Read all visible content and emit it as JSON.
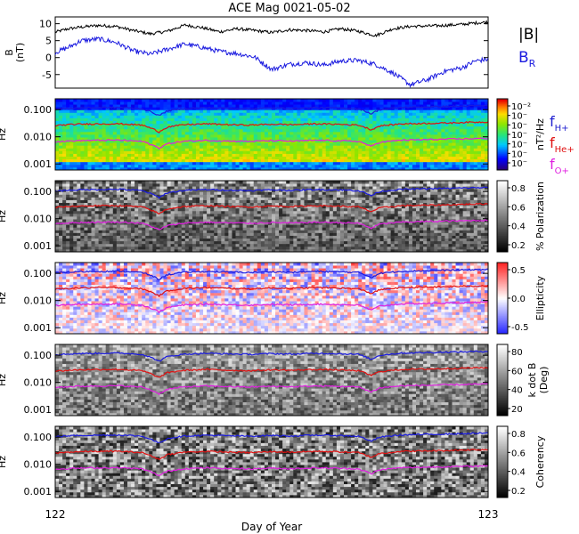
{
  "title": "ACE Mag 0021-05-02",
  "xlabel": "Day of Year",
  "x_ticks": [
    "122",
    "123"
  ],
  "chart_data": [
    {
      "type": "line",
      "ylabel": "B\n(nT)",
      "ylim": [
        -9,
        12
      ],
      "y_ticks": [
        "10",
        "5",
        "0",
        "-5"
      ],
      "series": [
        {
          "name": "|B|",
          "color": "#000000",
          "x": [
            0.0,
            0.03,
            0.06,
            0.1,
            0.14,
            0.18,
            0.22,
            0.26,
            0.3,
            0.34,
            0.38,
            0.42,
            0.46,
            0.5,
            0.54,
            0.58,
            0.62,
            0.66,
            0.7,
            0.74,
            0.78,
            0.82,
            0.86,
            0.9,
            0.94,
            0.97,
            1.0
          ],
          "y": [
            7.5,
            8.5,
            9.0,
            9.5,
            9.2,
            8.0,
            7.0,
            7.8,
            9.6,
            8.8,
            7.6,
            8.5,
            8.0,
            7.4,
            8.2,
            8.0,
            7.6,
            8.5,
            7.8,
            6.5,
            8.5,
            9.2,
            9.3,
            9.5,
            9.8,
            10.2,
            10.5
          ]
        },
        {
          "name": "B",
          "label_sub": "R",
          "color": "#1a1adf",
          "x": [
            0.0,
            0.03,
            0.06,
            0.1,
            0.14,
            0.18,
            0.22,
            0.26,
            0.3,
            0.34,
            0.38,
            0.42,
            0.46,
            0.5,
            0.54,
            0.58,
            0.62,
            0.66,
            0.7,
            0.74,
            0.78,
            0.82,
            0.86,
            0.9,
            0.94,
            0.97,
            1.0
          ],
          "y": [
            1.5,
            3.0,
            5.0,
            5.5,
            4.5,
            2.0,
            1.0,
            2.5,
            4.0,
            3.0,
            1.8,
            1.2,
            0.2,
            -3.5,
            -2.0,
            -1.5,
            -2.2,
            -1.0,
            -0.8,
            -2.0,
            -4.5,
            -8.0,
            -6.5,
            -4.0,
            -3.0,
            -1.0,
            -0.5
          ]
        }
      ]
    },
    {
      "type": "heatmap",
      "ylabel": "Hz",
      "y_ticks": [
        "0.100",
        "0.010",
        "0.001"
      ],
      "colorbar": {
        "label": "nT²/Hz",
        "ticks": [
          "10⁻²",
          "10⁻",
          "10⁻",
          "10⁻",
          "10⁻",
          "10⁻",
          "10⁻"
        ]
      },
      "lines": [
        "f_H+",
        "f_He+",
        "f_O+"
      ]
    },
    {
      "type": "heatmap",
      "ylabel": "Hz",
      "y_ticks": [
        "0.100",
        "0.010",
        "0.001"
      ],
      "colorbar": {
        "label": "% Polarization",
        "ticks": [
          "0.8",
          "0.6",
          "0.4",
          "0.2"
        ]
      }
    },
    {
      "type": "heatmap",
      "ylabel": "Hz",
      "y_ticks": [
        "0.100",
        "0.010",
        "0.001"
      ],
      "colorbar": {
        "label": "Ellipticity",
        "ticks": [
          "0.5",
          "0.0",
          "-0.5"
        ]
      }
    },
    {
      "type": "heatmap",
      "ylabel": "Hz",
      "y_ticks": [
        "0.100",
        "0.010",
        "0.001"
      ],
      "colorbar": {
        "label": "k dot B\n(Deg)",
        "ticks": [
          "80",
          "60",
          "40",
          "20"
        ]
      }
    },
    {
      "type": "heatmap",
      "ylabel": "Hz",
      "y_ticks": [
        "0.100",
        "0.010",
        "0.001"
      ],
      "colorbar": {
        "label": "Coherency",
        "ticks": [
          "0.8",
          "0.6",
          "0.4",
          "0.2"
        ]
      }
    }
  ],
  "gyro_legend": [
    {
      "base": "f",
      "sub": "H+",
      "color": "#2020d0"
    },
    {
      "base": "f",
      "sub": "He+",
      "color": "#e01010"
    },
    {
      "base": "f",
      "sub": "O+",
      "color": "#e020e0"
    }
  ],
  "gyrofrequencies_hz": {
    "x": [
      0.0,
      0.05,
      0.1,
      0.15,
      0.2,
      0.24,
      0.26,
      0.3,
      0.35,
      0.4,
      0.45,
      0.5,
      0.55,
      0.6,
      0.65,
      0.7,
      0.73,
      0.75,
      0.8,
      0.85,
      0.9,
      0.95,
      1.0
    ],
    "H+": [
      0.105,
      0.115,
      0.118,
      0.12,
      0.108,
      0.06,
      0.09,
      0.11,
      0.118,
      0.112,
      0.108,
      0.115,
      0.11,
      0.118,
      0.115,
      0.108,
      0.07,
      0.1,
      0.12,
      0.125,
      0.13,
      0.135,
      0.14
    ],
    "He+": [
      0.026,
      0.029,
      0.03,
      0.03,
      0.027,
      0.015,
      0.023,
      0.028,
      0.03,
      0.028,
      0.027,
      0.029,
      0.028,
      0.03,
      0.029,
      0.027,
      0.018,
      0.025,
      0.03,
      0.031,
      0.032,
      0.034,
      0.035
    ],
    "O+": [
      0.0066,
      0.0072,
      0.0074,
      0.0075,
      0.0068,
      0.0038,
      0.0056,
      0.0069,
      0.0074,
      0.007,
      0.0068,
      0.0072,
      0.0069,
      0.0074,
      0.0072,
      0.0068,
      0.0044,
      0.0063,
      0.0075,
      0.0078,
      0.0081,
      0.0084,
      0.0088
    ]
  }
}
